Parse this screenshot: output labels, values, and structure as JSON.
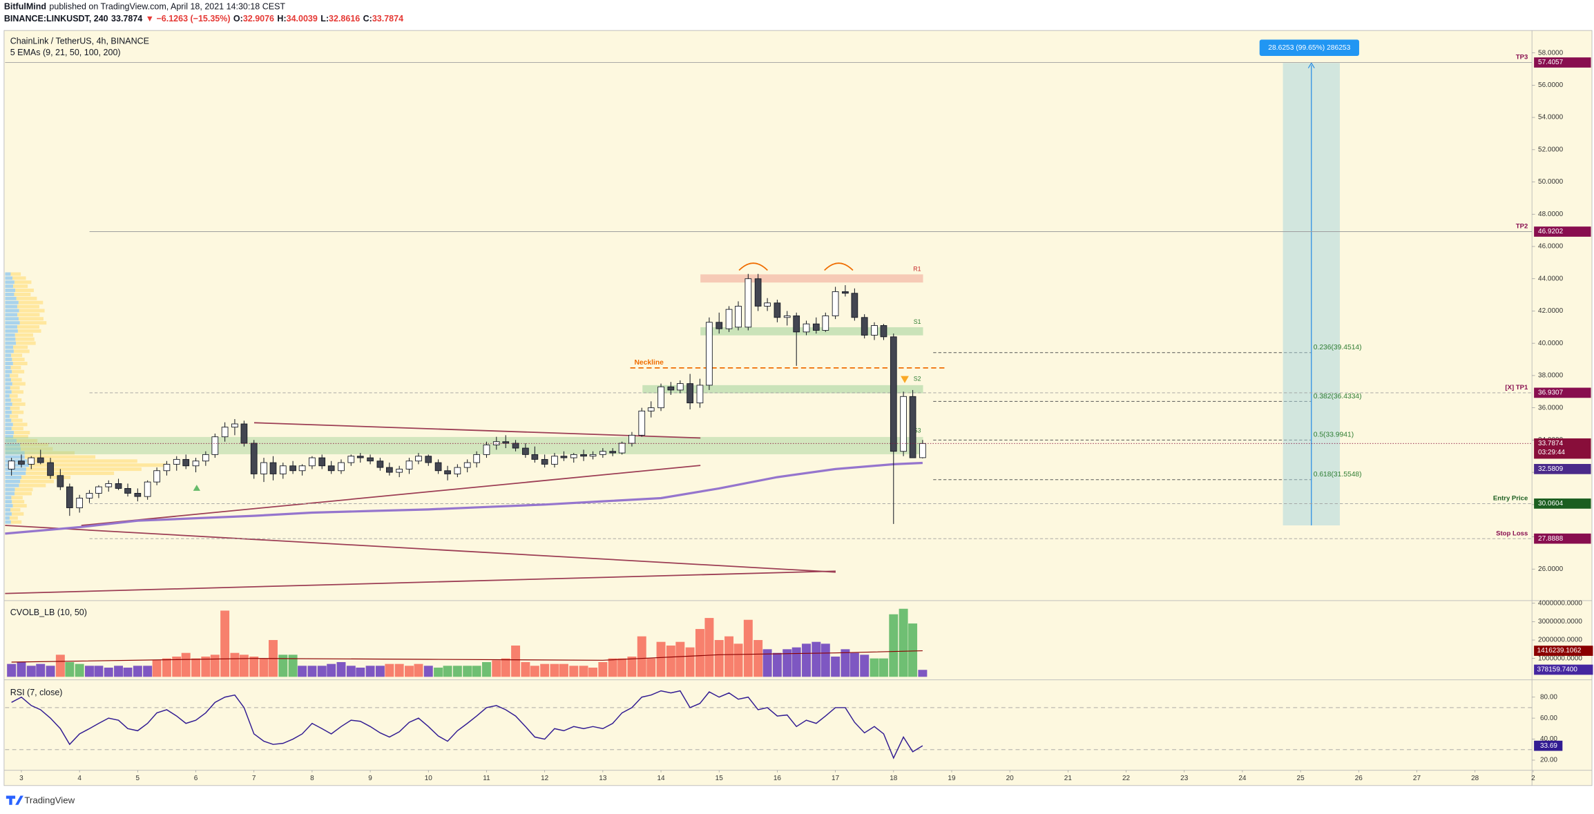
{
  "header": {
    "publisher": "BitfulMind",
    "published": "published on TradingView.com, April 18, 2021 14:30:18 CEST",
    "symbol": "BINANCE:LINKUSDT, 240",
    "last": "33.7874",
    "change": "▼ −6.1263 (−15.35%)",
    "ohlc": [
      {
        "key": "O:",
        "value": "32.9076"
      },
      {
        "key": "H:",
        "value": "34.0039"
      },
      {
        "key": "L:",
        "value": "32.8616"
      },
      {
        "key": "C:",
        "value": "33.7874"
      }
    ]
  },
  "chart_data": [
    {
      "type": "candlestick",
      "title": "ChainLink / TetherUS, 4h, BINANCE",
      "subtitle": "5 EMAs (9, 21, 50, 100, 200)",
      "up_color": "#ffffff",
      "down_color": "#434651",
      "grid": false,
      "x": [
        2.83,
        3,
        3.17,
        3.33,
        3.5,
        3.67,
        3.83,
        4,
        4.17,
        4.33,
        4.5,
        4.67,
        4.83,
        5,
        5.17,
        5.33,
        5.5,
        5.67,
        5.83,
        6,
        6.17,
        6.33,
        6.5,
        6.67,
        6.83,
        7,
        7.17,
        7.33,
        7.5,
        7.67,
        7.83,
        8,
        8.17,
        8.33,
        8.5,
        8.67,
        8.83,
        9,
        9.17,
        9.33,
        9.5,
        9.67,
        9.83,
        10,
        10.17,
        10.33,
        10.5,
        10.67,
        10.83,
        11,
        11.17,
        11.33,
        11.5,
        11.67,
        11.83,
        12,
        12.17,
        12.33,
        12.5,
        12.67,
        12.83,
        13,
        13.17,
        13.33,
        13.5,
        13.67,
        13.83,
        14,
        14.17,
        14.33,
        14.5,
        14.67,
        14.83,
        15,
        15.17,
        15.33,
        15.5,
        15.67,
        15.83,
        16,
        16.17,
        16.33,
        16.5,
        16.67,
        16.83,
        17,
        17.17,
        17.33,
        17.5,
        17.67,
        17.83,
        18,
        18.17,
        18.33,
        18.5
      ],
      "ohlc": [
        [
          32.2,
          32.9,
          31.8,
          32.7
        ],
        [
          32.7,
          33.1,
          32.3,
          32.5
        ],
        [
          32.5,
          33.0,
          32.2,
          32.9
        ],
        [
          32.9,
          33.4,
          32.5,
          32.6
        ],
        [
          32.6,
          32.9,
          31.6,
          31.8
        ],
        [
          31.8,
          32.2,
          30.9,
          31.1
        ],
        [
          31.1,
          31.3,
          29.3,
          29.8
        ],
        [
          29.8,
          30.6,
          29.5,
          30.4
        ],
        [
          30.4,
          30.9,
          30.1,
          30.7
        ],
        [
          30.7,
          31.2,
          30.4,
          31.1
        ],
        [
          31.1,
          31.5,
          30.8,
          31.3
        ],
        [
          31.3,
          31.6,
          30.9,
          31.0
        ],
        [
          31.0,
          31.3,
          30.5,
          30.7
        ],
        [
          30.7,
          31.0,
          30.2,
          30.5
        ],
        [
          30.5,
          31.5,
          30.3,
          31.4
        ],
        [
          31.4,
          32.3,
          31.2,
          32.1
        ],
        [
          32.1,
          32.7,
          31.8,
          32.5
        ],
        [
          32.5,
          33.0,
          32.1,
          32.8
        ],
        [
          32.8,
          33.1,
          32.2,
          32.4
        ],
        [
          32.4,
          32.9,
          32.0,
          32.7
        ],
        [
          32.7,
          33.3,
          32.4,
          33.1
        ],
        [
          33.1,
          34.4,
          32.9,
          34.2
        ],
        [
          34.2,
          35.1,
          33.9,
          34.8
        ],
        [
          34.8,
          35.3,
          34.3,
          35.0
        ],
        [
          35.0,
          35.2,
          33.6,
          33.8
        ],
        [
          33.8,
          34.0,
          31.6,
          31.9
        ],
        [
          31.9,
          32.9,
          31.4,
          32.6
        ],
        [
          32.6,
          33.0,
          31.5,
          31.9
        ],
        [
          31.9,
          32.6,
          31.6,
          32.4
        ],
        [
          32.4,
          32.7,
          31.9,
          32.1
        ],
        [
          32.1,
          32.5,
          31.8,
          32.4
        ],
        [
          32.4,
          33.0,
          32.2,
          32.9
        ],
        [
          32.9,
          33.1,
          32.2,
          32.4
        ],
        [
          32.4,
          32.7,
          31.9,
          32.1
        ],
        [
          32.1,
          32.8,
          31.9,
          32.6
        ],
        [
          32.6,
          33.1,
          32.4,
          33.0
        ],
        [
          33.0,
          33.2,
          32.6,
          32.9
        ],
        [
          32.9,
          33.1,
          32.5,
          32.7
        ],
        [
          32.7,
          32.9,
          32.1,
          32.3
        ],
        [
          32.3,
          32.6,
          31.8,
          32.0
        ],
        [
          32.0,
          32.4,
          31.7,
          32.2
        ],
        [
          32.2,
          32.9,
          31.9,
          32.7
        ],
        [
          32.7,
          33.2,
          32.5,
          33.0
        ],
        [
          33.0,
          33.1,
          32.4,
          32.6
        ],
        [
          32.6,
          32.8,
          31.9,
          32.1
        ],
        [
          32.1,
          32.4,
          31.5,
          31.9
        ],
        [
          31.9,
          32.5,
          31.7,
          32.3
        ],
        [
          32.3,
          32.8,
          32.0,
          32.6
        ],
        [
          32.6,
          33.3,
          32.3,
          33.1
        ],
        [
          33.1,
          33.9,
          32.9,
          33.7
        ],
        [
          33.7,
          34.2,
          33.4,
          33.9
        ],
        [
          33.9,
          34.3,
          33.5,
          33.8
        ],
        [
          33.8,
          34.0,
          33.3,
          33.5
        ],
        [
          33.5,
          33.8,
          32.9,
          33.1
        ],
        [
          33.1,
          33.6,
          32.6,
          32.8
        ],
        [
          32.8,
          33.1,
          32.3,
          32.5
        ],
        [
          32.5,
          33.2,
          32.3,
          33.0
        ],
        [
          33.0,
          33.3,
          32.7,
          32.9
        ],
        [
          32.9,
          33.2,
          32.6,
          33.1
        ],
        [
          33.1,
          33.4,
          32.7,
          33.0
        ],
        [
          33.0,
          33.3,
          32.8,
          33.1
        ],
        [
          33.1,
          33.5,
          32.9,
          33.3
        ],
        [
          33.3,
          33.5,
          33.0,
          33.2
        ],
        [
          33.2,
          33.9,
          33.1,
          33.8
        ],
        [
          33.8,
          34.5,
          33.6,
          34.3
        ],
        [
          34.3,
          36.0,
          34.2,
          35.8
        ],
        [
          35.8,
          36.4,
          35.4,
          36.0
        ],
        [
          36.0,
          37.5,
          35.8,
          37.3
        ],
        [
          37.3,
          37.6,
          36.8,
          37.1
        ],
        [
          37.1,
          37.7,
          36.9,
          37.5
        ],
        [
          37.5,
          38.1,
          35.9,
          36.3
        ],
        [
          36.3,
          37.8,
          36.0,
          37.4
        ],
        [
          37.4,
          41.6,
          37.1,
          41.3
        ],
        [
          41.3,
          41.9,
          40.6,
          40.9
        ],
        [
          40.9,
          42.3,
          40.7,
          42.1
        ],
        [
          41.0,
          42.6,
          40.8,
          42.3
        ],
        [
          41.0,
          44.3,
          40.8,
          44.0
        ],
        [
          44.0,
          44.3,
          42.0,
          42.3
        ],
        [
          42.3,
          42.8,
          42.0,
          42.5
        ],
        [
          42.5,
          42.7,
          41.3,
          41.6
        ],
        [
          41.6,
          42.0,
          41.1,
          41.7
        ],
        [
          41.7,
          41.9,
          38.6,
          40.7
        ],
        [
          40.7,
          41.4,
          40.5,
          41.2
        ],
        [
          41.2,
          41.6,
          40.6,
          40.8
        ],
        [
          40.8,
          41.9,
          40.7,
          41.7
        ],
        [
          41.7,
          43.5,
          41.5,
          43.2
        ],
        [
          43.2,
          43.6,
          42.9,
          43.1
        ],
        [
          43.1,
          43.4,
          41.4,
          41.6
        ],
        [
          41.6,
          41.8,
          40.3,
          40.5
        ],
        [
          40.5,
          41.3,
          40.2,
          41.1
        ],
        [
          41.1,
          41.2,
          40.2,
          40.4
        ],
        [
          40.4,
          40.6,
          28.8,
          33.3
        ],
        [
          33.3,
          37.0,
          33.0,
          36.7
        ],
        [
          36.7,
          37.1,
          32.9,
          32.9
        ],
        [
          32.9076,
          34.0039,
          32.8616,
          33.7874
        ]
      ],
      "ema_x": [
        2.72,
        4,
        5,
        6,
        7,
        8,
        9,
        10,
        11,
        12,
        13,
        14,
        15,
        16,
        17,
        18,
        18.5
      ],
      "ema_values": [
        28.2,
        28.6,
        29.0,
        29.15,
        29.3,
        29.5,
        29.6,
        29.7,
        29.85,
        30.0,
        30.2,
        30.4,
        31.0,
        31.7,
        32.2,
        32.5,
        32.58
      ],
      "ema_color": "#9575cd",
      "xlim": [
        2.72,
        28.98
      ],
      "xticks": [
        3,
        4,
        5,
        6,
        7,
        8,
        9,
        10,
        11,
        12,
        13,
        14,
        15,
        16,
        17,
        18,
        19,
        20,
        21,
        22,
        23,
        24,
        25,
        26,
        27,
        28,
        {
          "value": 29,
          "label": "2"
        }
      ],
      "ylim": [
        24.11,
        59.39
      ],
      "yticks": [
        {
          "value": 26,
          "label": "26.0000"
        },
        {
          "value": 28,
          "label": "28.0000"
        },
        {
          "value": 30,
          "label": "30.0000"
        },
        {
          "value": 32,
          "label": "32.0000"
        },
        {
          "value": 34,
          "label": "34.0000"
        },
        {
          "value": 36,
          "label": "36.0000"
        },
        {
          "value": 38,
          "label": "38.0000"
        },
        {
          "value": 40,
          "label": "40.0000"
        },
        {
          "value": 42,
          "label": "42.0000"
        },
        {
          "value": 44,
          "label": "44.0000"
        },
        {
          "value": 46,
          "label": "46.0000"
        },
        {
          "value": 48,
          "label": "48.0000"
        },
        {
          "value": 50,
          "label": "50.0000"
        },
        {
          "value": 52,
          "label": "52.0000"
        },
        {
          "value": 54,
          "label": "54.0000"
        },
        {
          "value": 56,
          "label": "56.0000"
        },
        {
          "value": 58,
          "label": "58.0000"
        }
      ],
      "levels": [
        {
          "name": "TP3",
          "value": 57.4057,
          "color": "#880e4f",
          "dash": false
        },
        {
          "name": "TP2",
          "value": 46.9202,
          "color": "#880e4f",
          "dash": false
        },
        {
          "name": "[X] TP1",
          "value": 36.9307,
          "color": "#880e4f",
          "dash": true
        },
        {
          "name": "Entry Price",
          "value": 30.0604,
          "color": "#1b5e20",
          "dash": true
        },
        {
          "name": "Stop Loss",
          "value": 27.8888,
          "color": "#880e4f",
          "dash": true
        }
      ],
      "last_price": 33.7874,
      "last_color": "#880e3a",
      "countdown": "03:29:44",
      "ema_last": 32.5809,
      "ema_box_color": "#4a2a8a",
      "annotations": {
        "neckline": "Neckline",
        "r1": "R1",
        "s1": "S1",
        "s2": "S2",
        "s3": "S3"
      },
      "fib_labels": [
        "0.236(39.4514)",
        "0.382(36.4334)",
        "0.5(33.9941)",
        "0.618(31.5548)"
      ],
      "position_label": "28.6253 (99.65%) 286253"
    },
    {
      "type": "bar",
      "title": "CVOLB_LB (10, 50)",
      "values": [
        700000,
        800000,
        600000,
        700000,
        600000,
        1200000,
        800000,
        700000,
        600000,
        600000,
        500000,
        600000,
        500000,
        600000,
        600000,
        900000,
        1000000,
        1100000,
        1300000,
        1000000,
        1100000,
        1200000,
        3600000,
        1300000,
        1200000,
        1100000,
        1000000,
        2000000,
        1200000,
        1200000,
        600000,
        600000,
        600000,
        700000,
        800000,
        600000,
        500000,
        600000,
        600000,
        700000,
        700000,
        600000,
        700000,
        600000,
        500000,
        600000,
        600000,
        600000,
        600000,
        800000,
        900000,
        1000000,
        1700000,
        800000,
        600000,
        700000,
        700000,
        700000,
        600000,
        600000,
        500000,
        800000,
        1000000,
        1000000,
        1100000,
        2200000,
        1000000,
        1900000,
        1700000,
        1900000,
        1600000,
        2600000,
        3200000,
        2000000,
        2200000,
        1800000,
        3100000,
        2000000,
        1500000,
        1300000,
        1500000,
        1600000,
        1800000,
        1900000,
        1800000,
        1100000,
        1500000,
        1300000,
        1200000,
        1000000,
        1000000,
        3400000,
        3700000,
        2900000,
        378159.74
      ],
      "color_index": [
        0,
        0,
        0,
        0,
        0,
        1,
        2,
        2,
        0,
        0,
        0,
        0,
        0,
        0,
        0,
        1,
        1,
        1,
        1,
        1,
        1,
        1,
        1,
        1,
        1,
        1,
        1,
        1,
        2,
        2,
        0,
        0,
        0,
        0,
        0,
        0,
        0,
        0,
        0,
        1,
        1,
        1,
        1,
        0,
        2,
        2,
        2,
        2,
        2,
        2,
        1,
        1,
        1,
        1,
        1,
        1,
        1,
        1,
        1,
        1,
        1,
        1,
        1,
        1,
        1,
        1,
        1,
        1,
        1,
        1,
        1,
        1,
        1,
        1,
        1,
        1,
        1,
        1,
        0,
        0,
        0,
        0,
        0,
        0,
        0,
        0,
        0,
        0,
        0,
        2,
        2,
        2,
        2,
        2,
        0
      ],
      "palette": [
        "#7e57c2",
        "#f7806d",
        "#6fbf73"
      ],
      "last_label": "378159.7400",
      "last_color": "#4527a0",
      "ma_x": [
        2.83,
        7,
        10,
        13,
        15,
        17,
        18.5
      ],
      "ma_values": [
        800000,
        1000000,
        950000,
        900000,
        1200000,
        1300000,
        1416239.1062
      ],
      "ma_color": "#8b0000",
      "ylim": [
        0,
        4200000
      ],
      "yticks": [
        {
          "value": 1000000,
          "label": "1000000.0000"
        },
        {
          "value": 2000000,
          "label": "2000000.0000"
        },
        {
          "value": 3000000,
          "label": "3000000.0000"
        },
        {
          "value": 4000000,
          "label": "4000000.0000"
        }
      ]
    },
    {
      "type": "line",
      "title": "RSI (7, close)",
      "color": "#311b92",
      "values": [
        75,
        80,
        72,
        68,
        60,
        50,
        35,
        45,
        50,
        55,
        60,
        58,
        50,
        48,
        55,
        65,
        68,
        62,
        55,
        58,
        65,
        75,
        80,
        82,
        70,
        45,
        38,
        35,
        36,
        40,
        45,
        55,
        50,
        45,
        52,
        58,
        57,
        52,
        46,
        42,
        47,
        56,
        60,
        52,
        43,
        38,
        48,
        55,
        62,
        70,
        72,
        68,
        62,
        52,
        42,
        40,
        50,
        48,
        52,
        50,
        52,
        50,
        55,
        65,
        70,
        80,
        82,
        86,
        84,
        86,
        70,
        74,
        85,
        80,
        84,
        78,
        80,
        68,
        70,
        62,
        63,
        52,
        58,
        55,
        62,
        70,
        70,
        56,
        46,
        52,
        45,
        22,
        42,
        28,
        33.69
      ],
      "bands": [
        70,
        30
      ],
      "ylim": [
        12.26,
        95.48
      ],
      "yticks": [
        {
          "value": 20,
          "label": "20.00"
        },
        {
          "value": 40,
          "label": "40.00"
        },
        {
          "value": 60,
          "label": "60.00"
        },
        {
          "value": 80,
          "label": "80.00"
        }
      ]
    }
  ],
  "footer": {
    "brand": "TradingView"
  }
}
